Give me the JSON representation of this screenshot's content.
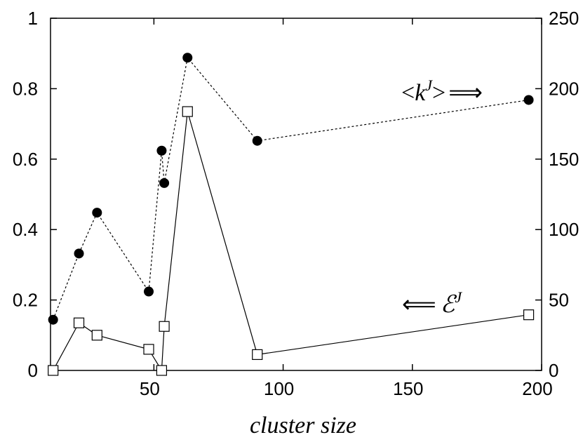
{
  "chart_data": {
    "type": "line",
    "xlabel": "cluster size",
    "xlim": [
      10,
      200
    ],
    "x_ticks": [
      "50",
      "100",
      "150",
      "200"
    ],
    "x_tick_values": [
      50,
      100,
      150,
      200
    ],
    "ylim_left": [
      0,
      1
    ],
    "y_ticks_left": [
      "0",
      "0.2",
      "0.4",
      "0.6",
      "0.8",
      "1"
    ],
    "y_tick_values_left": [
      0,
      0.2,
      0.4,
      0.6,
      0.8,
      1
    ],
    "ylim_right": [
      0,
      250
    ],
    "y_ticks_right": [
      "0",
      "50",
      "100",
      "150",
      "200",
      "250"
    ],
    "y_tick_values_right": [
      0,
      50,
      100,
      150,
      200,
      250
    ],
    "grid": false,
    "series": [
      {
        "key": "k",
        "axis": "right",
        "marker": "filled-circle",
        "line": "dotted",
        "color": "#000000",
        "x": [
          11,
          21,
          28,
          48,
          53,
          54,
          63,
          90,
          195
        ],
        "y": [
          36,
          83,
          112,
          56,
          156,
          133,
          222,
          163,
          192
        ]
      },
      {
        "key": "E",
        "axis": "left",
        "marker": "open-square",
        "line": "solid",
        "color": "#000000",
        "x": [
          11,
          21,
          28,
          48,
          53,
          54,
          63,
          90,
          195
        ],
        "y": [
          0.0,
          0.135,
          0.1,
          0.06,
          0.0,
          0.125,
          0.735,
          0.045,
          0.158
        ]
      }
    ],
    "annotations": {
      "k_label": {
        "open": "<",
        "base": "k",
        "sup": "J",
        "close": ">",
        "arrow": "⟹"
      },
      "e_label": {
        "arrow": "⟸",
        "base": "ℰ",
        "sup": "J"
      }
    }
  }
}
